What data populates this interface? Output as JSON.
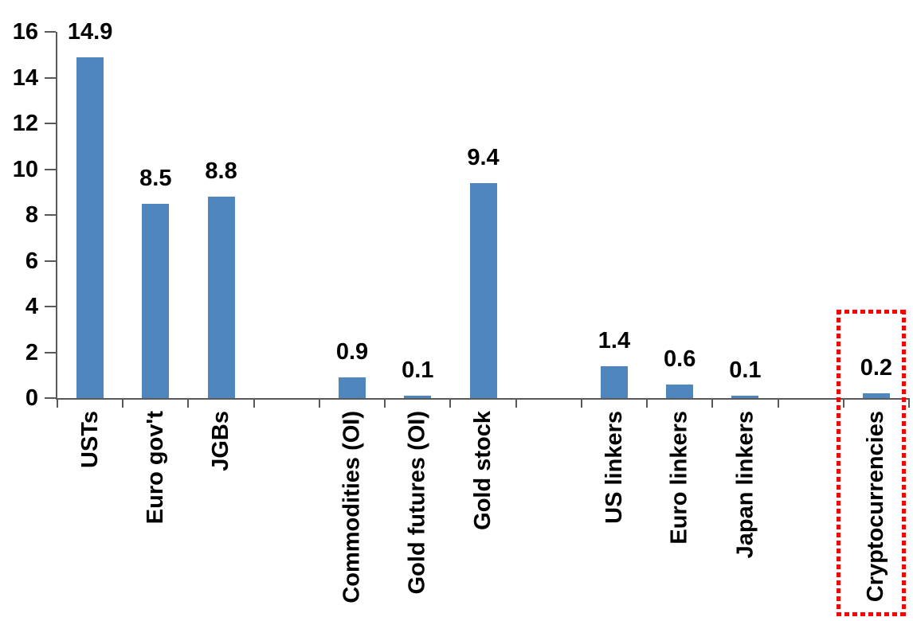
{
  "chart_data": {
    "type": "bar",
    "title": "",
    "xlabel": "",
    "ylabel": "",
    "categories": [
      "USTs",
      "Euro gov't",
      "JGBs",
      "",
      "Commodities (OI)",
      "Gold futures (OI)",
      "Gold stock",
      "",
      "US linkers",
      "Euro linkers",
      "Japan linkers",
      "",
      "Cryptocurrencies"
    ],
    "values": [
      14.9,
      8.5,
      8.8,
      null,
      0.9,
      0.1,
      9.4,
      null,
      1.4,
      0.6,
      0.1,
      null,
      0.2
    ],
    "value_label_decimals": 1,
    "ylim": [
      0,
      16
    ],
    "yticks": [
      0,
      2,
      4,
      6,
      8,
      10,
      12,
      14,
      16
    ],
    "grid": false,
    "legend": null,
    "bar_orientation": "vertical",
    "category_label_rotation_deg": -90,
    "highlighted_category": "Cryptocurrencies",
    "highlight_style": "red-dotted-rectangle",
    "colors": {
      "bar": "#4F86BE",
      "axis": "#595959",
      "text": "#000000",
      "highlight_box": "#FF0000",
      "background": "#FFFFFF"
    }
  }
}
